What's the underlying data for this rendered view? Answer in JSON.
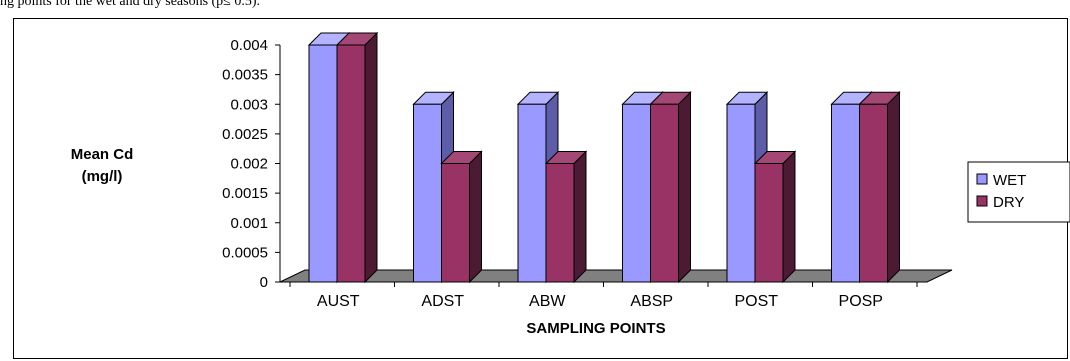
{
  "caption_fragment": "ng points for the wet and dry seasons (p≤ 0.5).",
  "chart_data": {
    "type": "bar",
    "categories": [
      "AUST",
      "ADST",
      "ABW",
      "ABSP",
      "POST",
      "POSP"
    ],
    "series": [
      {
        "name": "WET",
        "values": [
          0.004,
          0.003,
          0.003,
          0.003,
          0.003,
          0.003
        ],
        "color": "#9999FF",
        "top_color": "#B3B3FF",
        "side_color": "#5C5CA8"
      },
      {
        "name": "DRY",
        "values": [
          0.004,
          0.002,
          0.002,
          0.003,
          0.002,
          0.003
        ],
        "color": "#993366",
        "top_color": "#A34775",
        "side_color": "#4D1A33"
      }
    ],
    "yticks": [
      "0",
      "0.0005",
      "0.001",
      "0.0015",
      "0.002",
      "0.0025",
      "0.003",
      "0.0035",
      "0.004"
    ],
    "ylim": [
      0,
      0.004
    ],
    "ylabel": [
      "Mean Cd",
      "(mg/l)"
    ],
    "xlabel": "SAMPLING POINTS",
    "legend_position": "right",
    "floor_color": "#808080",
    "gridlines": false
  }
}
